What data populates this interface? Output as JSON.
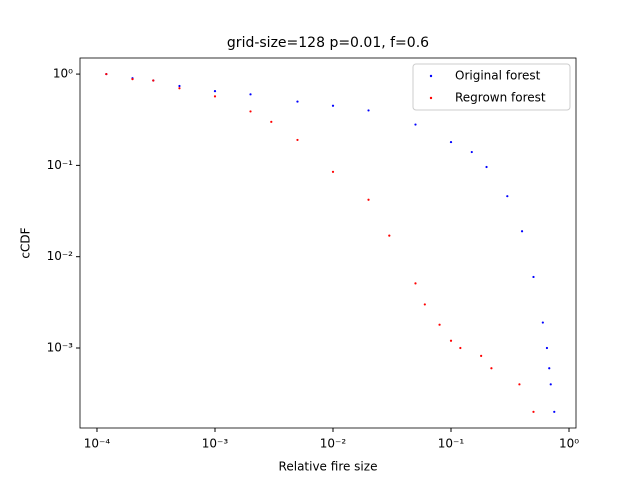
{
  "chart_data": {
    "type": "scatter",
    "title": "grid-size=128 p=0.01, f=0.6",
    "x_label": "Relative fire size",
    "y_label": "cCDF",
    "log_x": true,
    "log_y": true,
    "legend_position": "upper right",
    "xlim": [
      7.18e-05,
      1.146
    ],
    "ylim": [
      0.000133,
      1.5
    ],
    "xticks": [
      {
        "value": 0.0001,
        "label": "10⁻⁴"
      },
      {
        "value": 0.001,
        "label": "10⁻³"
      },
      {
        "value": 0.01,
        "label": "10⁻²"
      },
      {
        "value": 0.1,
        "label": "10⁻¹"
      },
      {
        "value": 1,
        "label": "10⁰"
      }
    ],
    "yticks": [
      {
        "value": 0.001,
        "label": "10⁻³"
      },
      {
        "value": 0.01,
        "label": "10⁻²"
      },
      {
        "value": 0.1,
        "label": "10⁻¹"
      },
      {
        "value": 1,
        "label": "10⁰"
      }
    ],
    "series": [
      {
        "name": "Original forest",
        "color": "#0000ff",
        "x": [
          0.00012,
          0.0002,
          0.0003,
          0.0005,
          0.001,
          0.002,
          0.005,
          0.01,
          0.02,
          0.05,
          0.1,
          0.15,
          0.2,
          0.3,
          0.4,
          0.5,
          0.6,
          0.65,
          0.68,
          0.7,
          0.75
        ],
        "values": [
          1.0,
          0.9,
          0.85,
          0.74,
          0.65,
          0.6,
          0.5,
          0.45,
          0.4,
          0.28,
          0.18,
          0.14,
          0.096,
          0.046,
          0.019,
          0.006,
          0.0019,
          0.001,
          0.0006,
          0.0004,
          0.0002
        ]
      },
      {
        "name": "Regrown forest",
        "color": "#ff0000",
        "x": [
          0.00012,
          0.0002,
          0.0003,
          0.0005,
          0.001,
          0.002,
          0.003,
          0.005,
          0.01,
          0.02,
          0.03,
          0.05,
          0.06,
          0.08,
          0.1,
          0.12,
          0.18,
          0.22,
          0.38,
          0.5
        ],
        "values": [
          1.0,
          0.88,
          0.85,
          0.7,
          0.57,
          0.39,
          0.3,
          0.19,
          0.085,
          0.042,
          0.017,
          0.0051,
          0.003,
          0.0018,
          0.0012,
          0.001,
          0.00082,
          0.0006,
          0.0004,
          0.0002
        ]
      }
    ]
  }
}
